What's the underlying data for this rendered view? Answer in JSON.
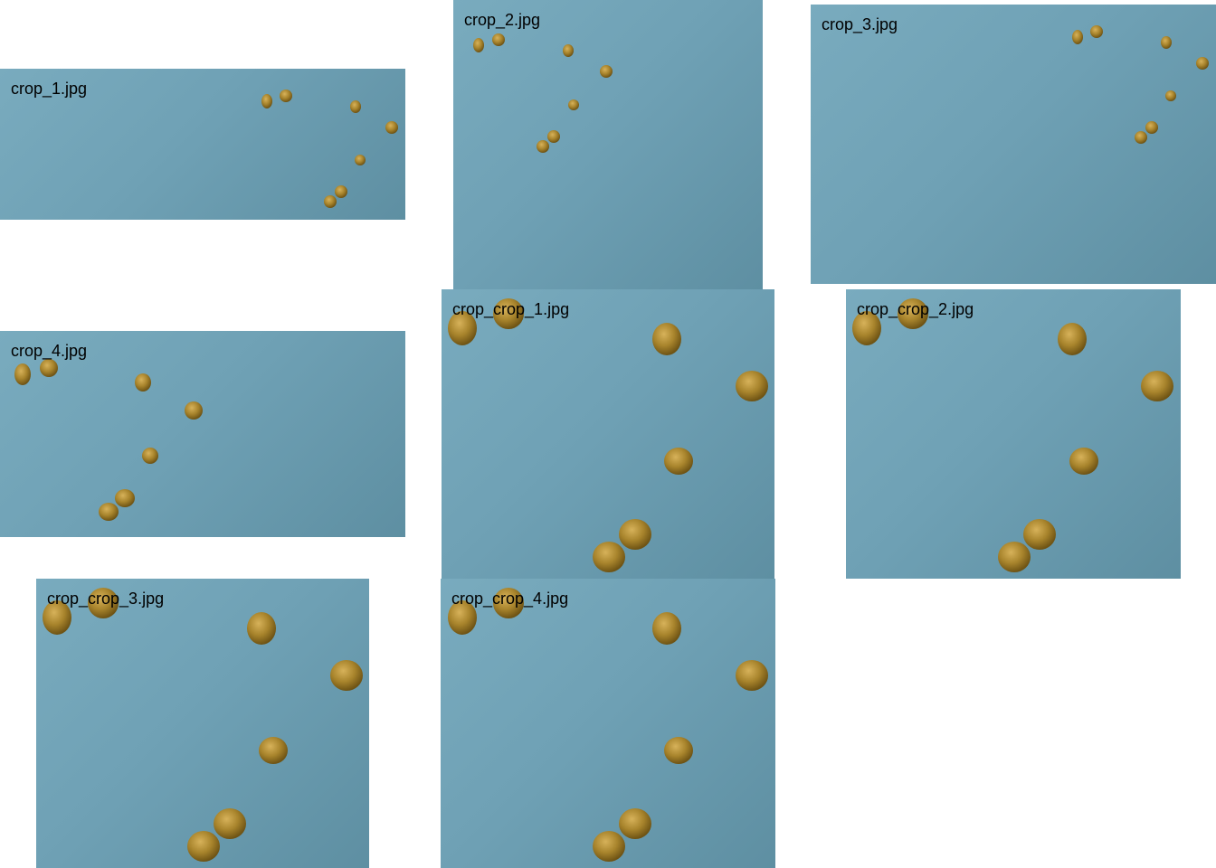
{
  "colors": {
    "page_background": "#ffffff",
    "tile_background": "#6fa1b5",
    "seed_light": "#c9a34a",
    "seed_mid": "#a8842c",
    "seed_dark": "#6e5314"
  },
  "tiles": [
    {
      "label": "crop_1.jpg",
      "icon": "seed-image"
    },
    {
      "label": "crop_2.jpg",
      "icon": "seed-image"
    },
    {
      "label": "crop_3.jpg",
      "icon": "seed-image"
    },
    {
      "label": "crop_4.jpg",
      "icon": "seed-image"
    },
    {
      "label": "crop_crop_1.jpg",
      "icon": "seed-image"
    },
    {
      "label": "crop_crop_2.jpg",
      "icon": "seed-image"
    },
    {
      "label": "crop_crop_3.jpg",
      "icon": "seed-image"
    },
    {
      "label": "crop_crop_4.jpg",
      "icon": "seed-image"
    }
  ]
}
